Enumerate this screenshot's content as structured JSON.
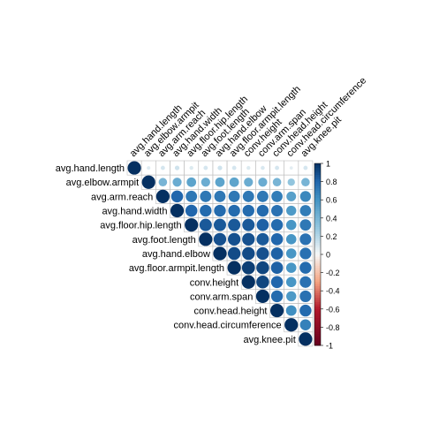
{
  "chart_data": {
    "type": "heatmap",
    "subtype": "upper-triangle correlation plot (circles)",
    "variables": [
      "avg.hand.length",
      "avg.elbow.armpit",
      "avg.arm.reach",
      "avg.hand.width",
      "avg.floor.hip.length",
      "avg.foot.length",
      "avg.hand.elbow",
      "avg.floor.armpit.length",
      "conv.height",
      "conv.arm.span",
      "conv.head.height",
      "conv.head.circumference",
      "avg.knee.pit"
    ],
    "matrix": [
      [
        1.0,
        0.07,
        0.1,
        0.12,
        0.08,
        0.1,
        0.12,
        0.1,
        0.08,
        0.09,
        0.1,
        0.06,
        0.1
      ],
      [
        0.07,
        1.0,
        0.4,
        0.45,
        0.5,
        0.45,
        0.5,
        0.5,
        0.45,
        0.45,
        0.4,
        0.3,
        0.4
      ],
      [
        0.1,
        0.4,
        1.0,
        0.8,
        0.72,
        0.72,
        0.72,
        0.72,
        0.72,
        0.72,
        0.7,
        0.52,
        0.65
      ],
      [
        0.12,
        0.45,
        0.8,
        1.0,
        0.8,
        0.78,
        0.78,
        0.78,
        0.78,
        0.78,
        0.75,
        0.56,
        0.7
      ],
      [
        0.08,
        0.5,
        0.72,
        0.8,
        1.0,
        0.85,
        0.85,
        0.85,
        0.85,
        0.82,
        0.78,
        0.58,
        0.72
      ],
      [
        0.1,
        0.45,
        0.72,
        0.78,
        0.85,
        1.0,
        0.88,
        0.88,
        0.88,
        0.85,
        0.8,
        0.58,
        0.75
      ],
      [
        0.12,
        0.5,
        0.72,
        0.78,
        0.85,
        0.88,
        1.0,
        0.9,
        0.9,
        0.88,
        0.82,
        0.58,
        0.75
      ],
      [
        0.1,
        0.5,
        0.72,
        0.78,
        0.85,
        0.88,
        0.9,
        1.0,
        0.95,
        0.92,
        0.82,
        0.58,
        0.78
      ],
      [
        0.08,
        0.45,
        0.72,
        0.78,
        0.85,
        0.88,
        0.9,
        0.95,
        1.0,
        0.92,
        0.8,
        0.58,
        0.75
      ],
      [
        0.09,
        0.45,
        0.72,
        0.78,
        0.82,
        0.85,
        0.88,
        0.92,
        0.92,
        1.0,
        0.78,
        0.56,
        0.75
      ],
      [
        0.1,
        0.4,
        0.7,
        0.75,
        0.78,
        0.8,
        0.82,
        0.82,
        0.8,
        0.78,
        1.0,
        0.62,
        0.78
      ],
      [
        0.06,
        0.3,
        0.52,
        0.56,
        0.58,
        0.58,
        0.58,
        0.58,
        0.58,
        0.56,
        0.62,
        1.0,
        0.68
      ],
      [
        0.1,
        0.4,
        0.65,
        0.7,
        0.72,
        0.75,
        0.75,
        0.78,
        0.75,
        0.75,
        0.78,
        0.68,
        1.0
      ]
    ],
    "color_scale": {
      "range": [
        -1,
        1
      ],
      "ticks": [
        "1",
        "0.8",
        "0.6",
        "0.4",
        "0.2",
        "0",
        "-0.2",
        "-0.4",
        "-0.6",
        "-0.8",
        "-1"
      ],
      "negative_color": "#67001F",
      "neutral_color": "#F7F7F7",
      "positive_color": "#053061"
    },
    "title": "",
    "grid": true,
    "legend": "right"
  }
}
